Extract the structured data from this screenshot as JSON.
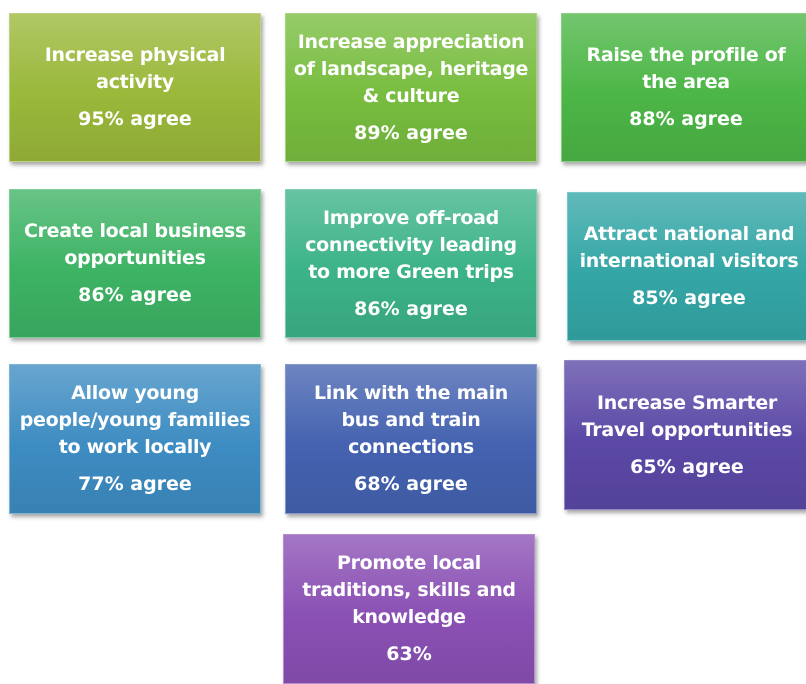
{
  "nodes": [
    {
      "lines": [
        "Increase physical",
        "activity"
      ],
      "value": "95% agree"
    },
    {
      "lines": [
        "Increase appreciation",
        "of landscape, heritage",
        "& culture"
      ],
      "value": "89% agree"
    },
    {
      "lines": [
        "Raise the profile of",
        "the area"
      ],
      "value": "88% agree"
    },
    {
      "lines": [
        "Create local business",
        "opportunities"
      ],
      "value": "86% agree"
    },
    {
      "lines": [
        "Improve off-road",
        "connectivity leading",
        "to more Green trips"
      ],
      "value": "86% agree"
    },
    {
      "lines": [
        "Attract national and",
        "international visitors"
      ],
      "value": "85% agree"
    },
    {
      "lines": [
        "Allow young",
        "people/young families",
        "to work locally"
      ],
      "value": "77% agree"
    },
    {
      "lines": [
        "Link with the main",
        "bus and train",
        "connections"
      ],
      "value": "68% agree"
    },
    {
      "lines": [
        "Increase Smarter",
        "Travel opportunities"
      ],
      "value": "65% agree"
    },
    {
      "lines": [
        "Promote local",
        "traditions, skills and",
        "knowledge"
      ],
      "value": "63%"
    }
  ]
}
